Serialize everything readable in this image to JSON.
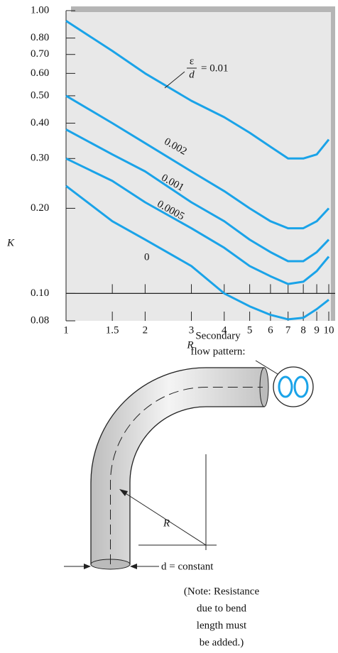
{
  "chart_data": {
    "type": "line",
    "x": [
      1,
      1.5,
      2,
      3,
      4,
      5,
      6,
      7,
      8,
      9,
      10
    ],
    "series": [
      {
        "name": "= 0.01",
        "color": "#1aa3e8",
        "values": [
          0.92,
          0.72,
          0.6,
          0.48,
          0.42,
          0.37,
          0.33,
          0.3,
          0.3,
          0.31,
          0.35
        ]
      },
      {
        "name": "0.002",
        "color": "#1aa3e8",
        "values": [
          0.5,
          0.4,
          0.34,
          0.27,
          0.23,
          0.2,
          0.18,
          0.17,
          0.17,
          0.18,
          0.2
        ]
      },
      {
        "name": "0.001",
        "color": "#1aa3e8",
        "values": [
          0.38,
          0.31,
          0.27,
          0.21,
          0.18,
          0.155,
          0.14,
          0.13,
          0.13,
          0.14,
          0.155
        ]
      },
      {
        "name": "0.0005",
        "color": "#1aa3e8",
        "values": [
          0.3,
          0.25,
          0.21,
          0.17,
          0.145,
          0.125,
          0.115,
          0.108,
          0.11,
          0.12,
          0.135
        ]
      },
      {
        "name": "0",
        "color": "#1aa3e8",
        "values": [
          0.24,
          0.18,
          0.155,
          0.125,
          0.1,
          0.09,
          0.084,
          0.081,
          0.082,
          0.088,
          0.095
        ]
      }
    ],
    "ratio_top": "ε",
    "ratio_bottom": "d",
    "xlabel": "R",
    "ylabel": "K",
    "xlim": [
      1,
      10
    ],
    "ylim": [
      0.08,
      1.0
    ],
    "xlog": true,
    "ylog": true,
    "xticks": [
      1,
      1.5,
      2,
      3,
      4,
      5,
      6,
      7,
      8,
      9,
      10
    ],
    "yticks": [
      {
        "value": 1.0,
        "label": "1.00"
      },
      {
        "value": 0.8,
        "label": "0.80"
      },
      {
        "value": 0.7,
        "label": "0.70"
      },
      {
        "value": 0.6,
        "label": "0.60"
      },
      {
        "value": 0.5,
        "label": "0.50"
      },
      {
        "value": 0.4,
        "label": "0.40"
      },
      {
        "value": 0.3,
        "label": "0.30"
      },
      {
        "value": 0.2,
        "label": "0.20"
      },
      {
        "value": 0.1,
        "label": "0.10"
      },
      0.08
    ]
  },
  "diagram": {
    "flow_title": [
      "Secondary",
      "flow pattern:"
    ],
    "radius_label": "R",
    "diameter_label": "d = constant",
    "note": [
      "(Note: Resistance",
      "due to bend",
      "length must",
      "be added.)"
    ]
  }
}
